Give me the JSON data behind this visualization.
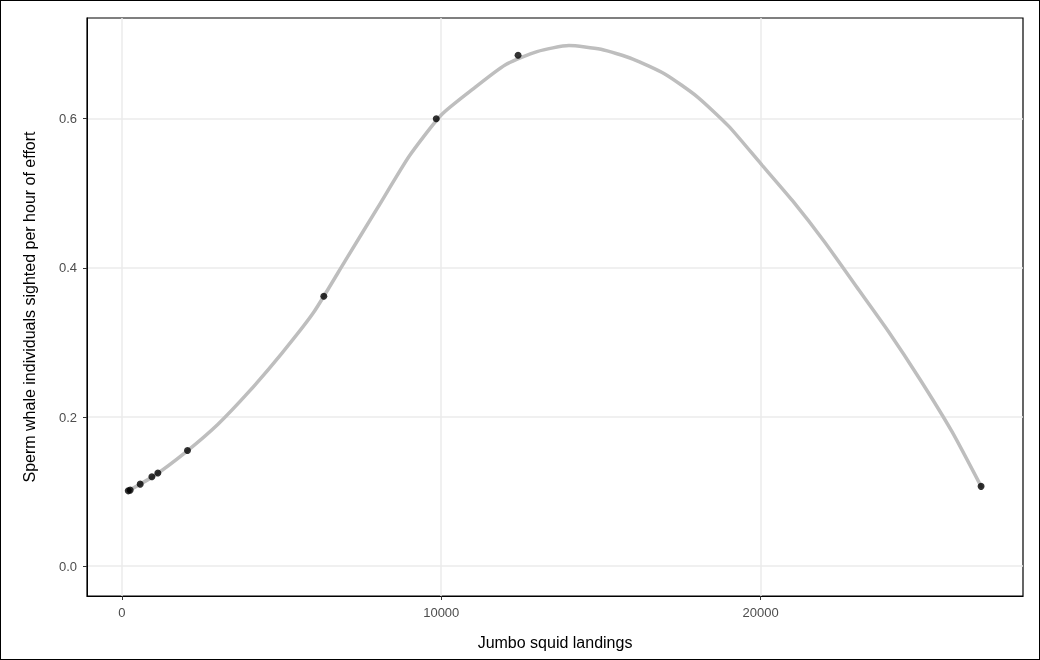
{
  "chart_data": {
    "type": "scatter",
    "xlabel": "Jumbo squid landings",
    "ylabel": "Sperm whale individuals sighted per hour of effort",
    "xlim": [
      -1094,
      28219
    ],
    "ylim": [
      -0.04,
      0.735
    ],
    "xticks": [
      0,
      10000,
      20000
    ],
    "yticks": [
      {
        "value": 0,
        "label": "0.0"
      },
      0.2,
      0.4,
      0.6
    ],
    "grid": true,
    "series": [
      {
        "type": "line",
        "color": "#bebebe",
        "line_style": "solid",
        "marker": "none",
        "x": [
          197,
          1000,
          2000,
          3000,
          4000,
          5000,
          6000,
          7000,
          8000,
          9000,
          10000,
          11000,
          12000,
          13000,
          14000,
          15000,
          16000,
          17000,
          18000,
          19000,
          20000,
          21000,
          22000,
          23000,
          24000,
          25000,
          26000,
          26906
        ],
        "values": [
          0.101,
          0.121,
          0.153,
          0.19,
          0.235,
          0.285,
          0.34,
          0.41,
          0.48,
          0.55,
          0.605,
          0.64,
          0.672,
          0.69,
          0.698,
          0.693,
          0.68,
          0.66,
          0.63,
          0.59,
          0.54,
          0.49,
          0.435,
          0.375,
          0.315,
          0.25,
          0.18,
          0.107
        ]
      },
      {
        "color": "#000000",
        "marker": "circle",
        "x": [
          197,
          259,
          572,
          938,
          1125,
          2053,
          6322,
          9844,
          12406,
          26906
        ],
        "values": [
          0.101,
          0.102,
          0.11,
          0.12,
          0.125,
          0.155,
          0.362,
          0.6,
          0.685,
          0.107
        ]
      }
    ]
  }
}
